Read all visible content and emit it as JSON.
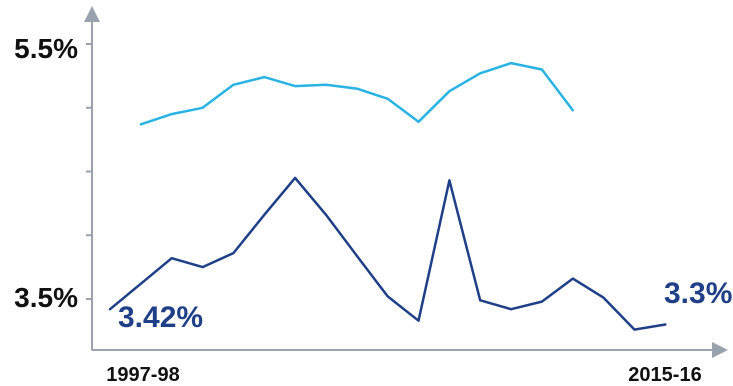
{
  "chart_data": {
    "type": "line",
    "title": "",
    "xlabel": "",
    "ylabel": "",
    "x_labels_shown": [
      "1997-98",
      "2015-16"
    ],
    "y_tick_labels": [
      "5.5%",
      "3.5%"
    ],
    "y_ticks": [
      5.5,
      3.5
    ],
    "ylim": [
      3.1,
      5.5
    ],
    "x_range": [
      0,
      18.8
    ],
    "grid": false,
    "legend": "none",
    "series": [
      {
        "color": "#29b3e3",
        "x": [
          1,
          2,
          3,
          4,
          5,
          6,
          7,
          8,
          9,
          10,
          11,
          12,
          13,
          14,
          15
        ],
        "values": [
          4.87,
          4.95,
          5.0,
          5.18,
          5.24,
          5.17,
          5.18,
          5.15,
          5.07,
          4.89,
          5.13,
          5.27,
          5.35,
          5.3,
          4.98
        ]
      },
      {
        "color": "#1f3f87",
        "x": [
          0,
          1,
          2,
          3,
          4,
          5,
          6,
          7,
          8,
          9,
          10,
          11,
          12,
          13,
          14,
          15,
          16,
          17,
          18
        ],
        "values": [
          3.42,
          3.62,
          3.82,
          3.75,
          3.86,
          4.16,
          4.45,
          4.16,
          3.84,
          3.52,
          3.33,
          4.43,
          3.49,
          3.42,
          3.48,
          3.66,
          3.51,
          3.26,
          3.3
        ],
        "start_label": "3.42%",
        "end_label": "3.3%"
      }
    ]
  }
}
